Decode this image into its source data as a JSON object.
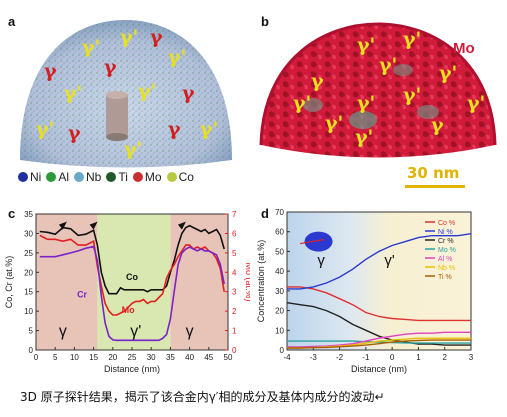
{
  "panels": {
    "a": {
      "label": "a",
      "gamma": "γ",
      "gamma_prime": "γ'"
    },
    "b": {
      "label": "b",
      "gamma": "γ",
      "gamma_prime": "γ'",
      "mo_label": "Mo",
      "scale": "30 nm"
    },
    "c": {
      "label": "c"
    },
    "d": {
      "label": "d"
    }
  },
  "legend_a": [
    {
      "name": "Ni",
      "color": "#1f2fa0"
    },
    {
      "name": "Al",
      "color": "#2a9a3a"
    },
    {
      "name": "Nb",
      "color": "#6aa8c8"
    },
    {
      "name": "Ti",
      "color": "#1f5a2a"
    },
    {
      "name": "Mo",
      "color": "#c83030"
    },
    {
      "name": "Co",
      "color": "#b8c840"
    }
  ],
  "caption": "3D 原子探针结果，揭示了该合金内γ′相的成分及基体内成分的波动↵",
  "chart_data": [
    {
      "panel": "c",
      "type": "line",
      "xlabel": "Distance (nm)",
      "ylabel": "Co, Cr (at.%)",
      "y2label": "Mo (at.%)",
      "xlim": [
        0,
        50
      ],
      "ylim": [
        0,
        35
      ],
      "y2lim": [
        0,
        7
      ],
      "xticks": [
        0,
        5,
        10,
        15,
        20,
        25,
        30,
        35,
        40,
        45,
        50
      ],
      "yticks": [
        0,
        5,
        10,
        15,
        20,
        25,
        30,
        35
      ],
      "y2ticks": [
        0,
        1,
        2,
        3,
        4,
        5,
        6,
        7
      ],
      "region_labels": [
        {
          "text": "γ",
          "x": 7
        },
        {
          "text": "γ'",
          "x": 26
        },
        {
          "text": "γ",
          "x": 40
        }
      ],
      "series": [
        {
          "name": "Co",
          "color": "#111111",
          "x": [
            1,
            3,
            5,
            7,
            9,
            11,
            13,
            15,
            16,
            17,
            18,
            19,
            20,
            21,
            22,
            23,
            24,
            25,
            26,
            27,
            28,
            29,
            30,
            31,
            32,
            33,
            34,
            35,
            36,
            37,
            38,
            39,
            40,
            41,
            42,
            43,
            44,
            45,
            46,
            47,
            48,
            49
          ],
          "y": [
            30.5,
            30.3,
            29.8,
            31.5,
            31.2,
            29.5,
            29.8,
            30.8,
            27,
            20,
            16.5,
            14.5,
            14.5,
            14.5,
            16,
            15.5,
            15.5,
            15.5,
            15.5,
            15.5,
            15.5,
            15,
            15.5,
            15.5,
            15.5,
            15.5,
            16.5,
            20,
            23,
            27,
            30,
            31.5,
            32,
            31.5,
            31,
            30.5,
            31,
            30,
            30.5,
            31,
            29.5,
            26
          ]
        },
        {
          "name": "Mo",
          "color": "#e02020",
          "axis": "right",
          "x": [
            1,
            3,
            5,
            7,
            9,
            11,
            13,
            15,
            16,
            17,
            18,
            19,
            20,
            21,
            22,
            23,
            24,
            25,
            26,
            27,
            28,
            29,
            30,
            31,
            32,
            33,
            34,
            35,
            36,
            37,
            38,
            39,
            40,
            41,
            42,
            43,
            44,
            45,
            46,
            47,
            48,
            49
          ],
          "y": [
            5.9,
            5.7,
            5.7,
            5.6,
            5.7,
            5.4,
            5.4,
            5.6,
            4.3,
            3.3,
            2.4,
            2.0,
            1.8,
            1.8,
            1.9,
            2.0,
            2.2,
            2.4,
            2.5,
            2.5,
            2.6,
            2.4,
            2.5,
            2.5,
            2.7,
            2.9,
            3.7,
            4.1,
            4.4,
            4.8,
            5.1,
            5.4,
            5.4,
            5.2,
            5.3,
            5.2,
            5.3,
            5.1,
            5.0,
            4.7,
            4.2,
            3.0
          ]
        },
        {
          "name": "Cr",
          "color": "#7a22c8",
          "x": [
            1,
            3,
            5,
            7,
            9,
            11,
            13,
            15,
            16,
            17,
            18,
            19,
            20,
            21,
            22,
            23,
            24,
            25,
            26,
            27,
            28,
            29,
            30,
            31,
            32,
            33,
            34,
            35,
            36,
            37,
            38,
            39,
            40,
            41,
            42,
            43,
            44,
            45,
            46,
            47,
            48,
            49
          ],
          "y": [
            24,
            24,
            24,
            24.5,
            25,
            25.5,
            26.2,
            26.6,
            23,
            14,
            7,
            3.5,
            2.6,
            2.5,
            2.5,
            2.5,
            2.5,
            2.5,
            2.5,
            2.5,
            2.5,
            2.5,
            2.5,
            2.5,
            2.5,
            3,
            4,
            8,
            15,
            22,
            25,
            26,
            26.5,
            26,
            25.5,
            26,
            25.5,
            25.5,
            25,
            24.5,
            22,
            17
          ]
        }
      ],
      "annotations": [
        {
          "text": "Co",
          "x": 25,
          "y": 18,
          "color": "#111111"
        },
        {
          "text": "Mo",
          "x": 24,
          "y": 9.5,
          "color": "#e02020"
        },
        {
          "text": "Cr",
          "x": 12,
          "y": 13.5,
          "color": "#7a22c8"
        }
      ],
      "markers_x": [
        7,
        15,
        38
      ]
    },
    {
      "panel": "d",
      "type": "line",
      "xlabel": "Distance (nm)",
      "ylabel": "Concentration (at.%)",
      "xlim": [
        -4,
        3
      ],
      "ylim": [
        0,
        70
      ],
      "xticks": [
        -4,
        -3,
        -2,
        -1,
        0,
        1,
        2,
        3
      ],
      "yticks": [
        0,
        10,
        20,
        30,
        40,
        50,
        60,
        70
      ],
      "region_labels": [
        {
          "text": "γ",
          "x": -2.7
        },
        {
          "text": "γ'",
          "x": -0.1
        }
      ],
      "series": [
        {
          "name": "Co %",
          "color": "#e03030",
          "x": [
            -4,
            -3.5,
            -3,
            -2.5,
            -2,
            -1.5,
            -1,
            -0.5,
            0,
            0.5,
            1,
            1.5,
            2,
            2.5,
            3
          ],
          "y": [
            32,
            32,
            31,
            29,
            26,
            23,
            19,
            17,
            16,
            15.5,
            15,
            15,
            15,
            15,
            15
          ]
        },
        {
          "name": "Ni %",
          "color": "#2a3ad0",
          "x": [
            -4,
            -3.5,
            -3,
            -2.5,
            -2,
            -1.5,
            -1,
            -0.5,
            0,
            0.5,
            1,
            1.5,
            2,
            2.5,
            3
          ],
          "y": [
            31,
            31,
            32,
            34,
            37,
            41,
            46,
            50,
            53,
            55,
            57,
            58,
            58,
            58,
            59
          ]
        },
        {
          "name": "Cr %",
          "color": "#222222",
          "x": [
            -4,
            -3.5,
            -3,
            -2.5,
            -2,
            -1.5,
            -1,
            -0.5,
            0,
            0.5,
            1,
            1.5,
            2,
            2.5,
            3
          ],
          "y": [
            24,
            23,
            22,
            20,
            17,
            13,
            10,
            7,
            5,
            4,
            3,
            3,
            2.5,
            2.5,
            2.5
          ]
        },
        {
          "name": "Mo %",
          "color": "#2aa0a0",
          "x": [
            -4,
            -3.5,
            -3,
            -2.5,
            -2,
            -1.5,
            -1,
            -0.5,
            0,
            0.5,
            1,
            1.5,
            2,
            2.5,
            3
          ],
          "y": [
            4.5,
            4.5,
            4.5,
            4.5,
            4.5,
            4.5,
            4.2,
            4.0,
            3.8,
            3.6,
            3.5,
            3.5,
            3.5,
            3.5,
            3.5
          ]
        },
        {
          "name": "Al %",
          "color": "#e040c0",
          "x": [
            -4,
            -3.5,
            -3,
            -2.5,
            -2,
            -1.5,
            -1,
            -0.5,
            0,
            0.5,
            1,
            1.5,
            2,
            2.5,
            3
          ],
          "y": [
            1.5,
            1.5,
            1.8,
            2,
            2.5,
            3.2,
            4.5,
            6,
            7,
            8,
            8.5,
            8.5,
            9,
            9,
            9
          ]
        },
        {
          "name": "Nb %",
          "color": "#e8c000",
          "x": [
            -4,
            -3.5,
            -3,
            -2.5,
            -2,
            -1.5,
            -1,
            -0.5,
            0,
            0.5,
            1,
            1.5,
            2,
            2.5,
            3
          ],
          "y": [
            1,
            1,
            1.2,
            1.5,
            2,
            2.5,
            3.5,
            4.5,
            5,
            5.5,
            6,
            6,
            6,
            6,
            6
          ]
        },
        {
          "name": "Ti %",
          "color": "#a86000",
          "x": [
            -4,
            -3.5,
            -3,
            -2.5,
            -2,
            -1.5,
            -1,
            -0.5,
            0,
            0.5,
            1,
            1.5,
            2,
            2.5,
            3
          ],
          "y": [
            1,
            1,
            1.2,
            1.3,
            1.6,
            2,
            2.5,
            3.2,
            4,
            4.5,
            4.8,
            5,
            5,
            5,
            5
          ]
        }
      ]
    }
  ]
}
